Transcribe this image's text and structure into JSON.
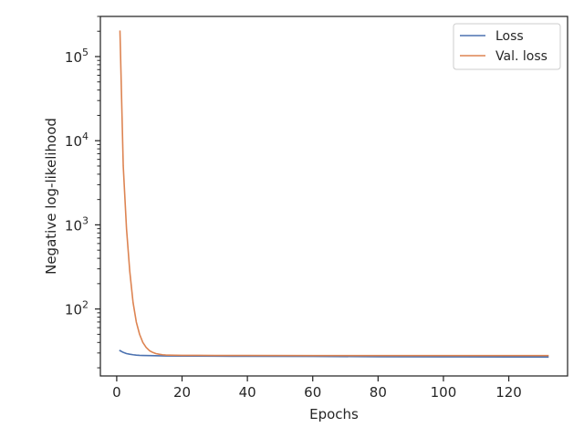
{
  "chart_data": {
    "type": "line",
    "xlabel": "Epochs",
    "ylabel": "Negative log-likelihood",
    "xlim": [
      -5,
      138
    ],
    "ylim": [
      16,
      300000
    ],
    "yscale": "log",
    "xticks": [
      0,
      20,
      40,
      60,
      80,
      100,
      120
    ],
    "yticks": [
      {
        "value": 100,
        "base": "10",
        "exp": "2"
      },
      {
        "value": 1000,
        "base": "10",
        "exp": "3"
      },
      {
        "value": 10000,
        "base": "10",
        "exp": "4"
      },
      {
        "value": 100000,
        "base": "10",
        "exp": "5"
      }
    ],
    "grid": false,
    "legend_position": "top-right",
    "series": [
      {
        "name": "Loss",
        "color": "#4c72b0",
        "x": [
          1,
          2,
          3,
          4,
          5,
          6,
          7,
          8,
          10,
          15,
          20,
          30,
          40,
          60,
          80,
          100,
          120,
          132
        ],
        "y": [
          32,
          30.5,
          29.5,
          29,
          28.6,
          28.3,
          28.1,
          28,
          27.9,
          27.7,
          27.6,
          27.5,
          27.4,
          27.3,
          27.1,
          27,
          26.9,
          26.8
        ]
      },
      {
        "name": "Val. loss",
        "color": "#dd8452",
        "x": [
          1,
          2,
          3,
          4,
          5,
          6,
          7,
          8,
          9,
          10,
          11,
          12,
          13,
          14,
          15,
          16,
          18,
          20,
          25,
          30,
          40,
          60,
          80,
          100,
          120,
          132
        ],
        "y": [
          200000,
          5000,
          900,
          280,
          120,
          70,
          50,
          40,
          35,
          32,
          30.5,
          29.5,
          29,
          28.6,
          28.4,
          28.3,
          28.2,
          28.1,
          28.1,
          28,
          28,
          27.9,
          27.9,
          27.9,
          27.9,
          27.9
        ]
      }
    ]
  }
}
